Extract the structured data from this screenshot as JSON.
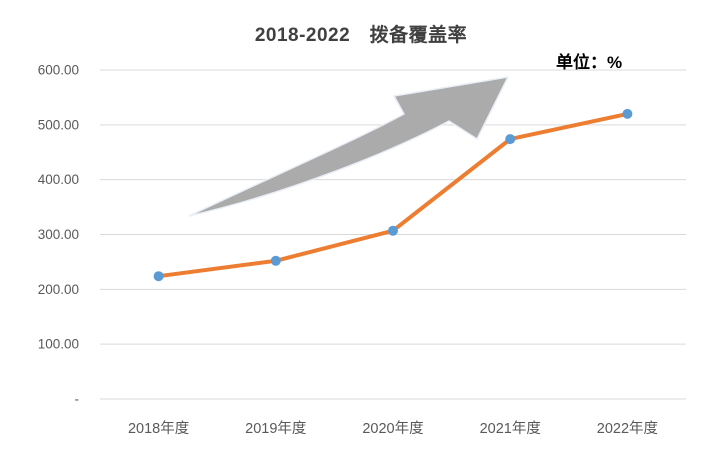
{
  "title": "2018-2022　拨备覆盖率",
  "unit_label": "单位：%",
  "chart_data": {
    "type": "line",
    "title": "2018-2022 拨备覆盖率",
    "categories": [
      "2018年度",
      "2019年度",
      "2020年度",
      "2021年度",
      "2022年度"
    ],
    "series": [
      {
        "name": "拨备覆盖率",
        "values": [
          224,
          252,
          307,
          474,
          520
        ]
      }
    ],
    "xlabel": "",
    "ylabel": "单位：%",
    "ylim": [
      0,
      600
    ],
    "y_ticks": [
      600,
      500,
      400,
      300,
      200,
      100,
      0
    ],
    "y_tick_labels": [
      "600.00",
      "500.00",
      "400.00",
      "300.00",
      "200.00",
      "100.00",
      "-"
    ],
    "grid": true,
    "legend_position": "none",
    "annotations": [
      {
        "type": "shape",
        "name": "upward-trend-arrow",
        "description": "gray curved swoosh arrow pointing up-right"
      }
    ]
  },
  "colors": {
    "line": "#ED7D31",
    "marker": "#5B9BD5",
    "grid": "#D9D9D9",
    "axis_text": "#595959",
    "title_text": "#404040",
    "unit_text": "#000000",
    "arrow_fill": "#ABABAB",
    "arrow_stroke": "#E9EFF7",
    "background": "#FFFFFF"
  }
}
